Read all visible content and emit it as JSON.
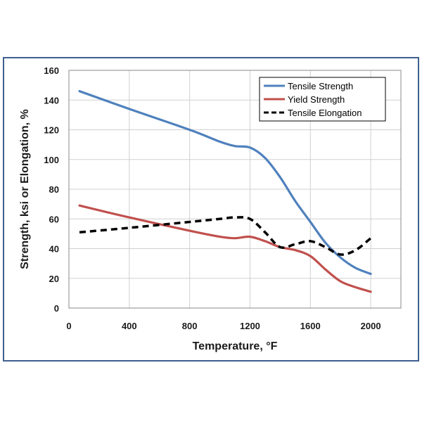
{
  "colors": {
    "frame": "#3f5f8f",
    "grid": "#d0d0d0",
    "tensile": "#4f81bd",
    "yield": "#c0504d",
    "elongation": "#000000"
  },
  "chart_data": {
    "type": "line",
    "title": "",
    "xlabel": "Temperature, °F",
    "ylabel": "Strength, ksi or Elongation, %",
    "xlim": [
      0,
      2200
    ],
    "ylim": [
      0,
      160
    ],
    "xticks": [
      0,
      400,
      800,
      1200,
      1600,
      2000
    ],
    "yticks": [
      0,
      20,
      40,
      60,
      80,
      100,
      120,
      140,
      160
    ],
    "grid": true,
    "legend_position": "top-right",
    "series": [
      {
        "name": "Tensile Strength",
        "style": "solid",
        "x": [
          70,
          400,
          800,
          1000,
          1100,
          1200,
          1300,
          1400,
          1500,
          1600,
          1700,
          1800,
          1900,
          2000
        ],
        "y": [
          146,
          134,
          120,
          112,
          109,
          108,
          101,
          88,
          72,
          58,
          44,
          34,
          27,
          23
        ]
      },
      {
        "name": "Yield Strength",
        "style": "solid",
        "x": [
          70,
          400,
          800,
          1000,
          1100,
          1200,
          1300,
          1400,
          1500,
          1600,
          1700,
          1800,
          1900,
          2000
        ],
        "y": [
          69,
          61,
          52,
          48,
          47,
          48,
          45,
          41,
          39,
          35,
          26,
          18,
          14,
          11
        ]
      },
      {
        "name": "Tensile Elongation",
        "style": "dashed",
        "x": [
          70,
          400,
          800,
          1000,
          1100,
          1200,
          1300,
          1400,
          1500,
          1600,
          1700,
          1800,
          1900,
          2000
        ],
        "y": [
          51,
          54,
          58,
          60,
          61,
          60,
          51,
          41,
          43,
          45,
          41,
          36,
          39,
          47
        ]
      }
    ]
  }
}
